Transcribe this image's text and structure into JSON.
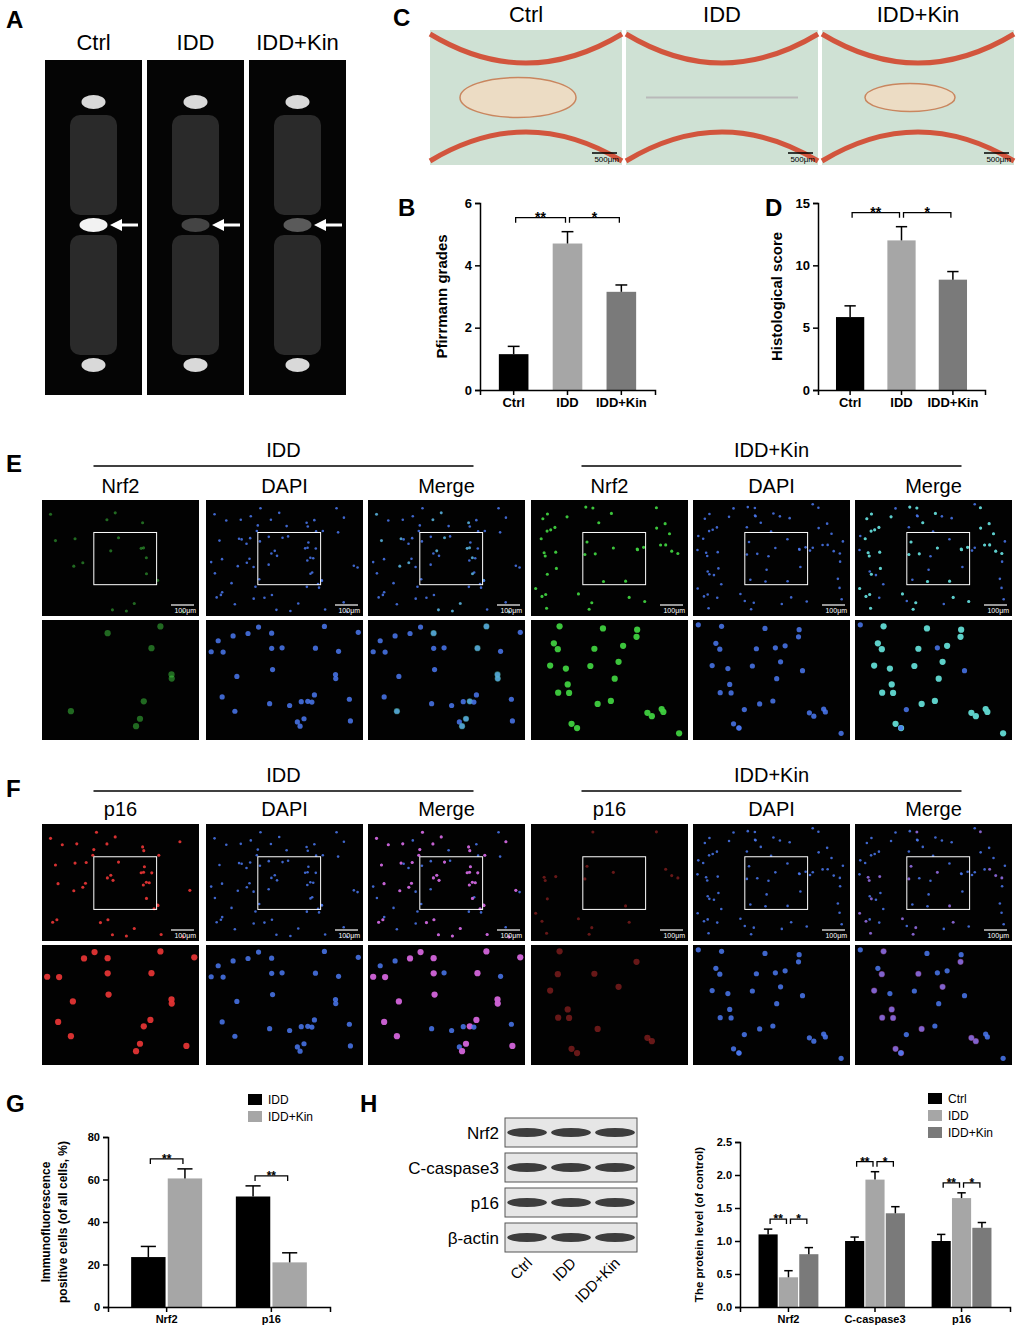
{
  "chart_data": [
    {
      "type": "bar",
      "title": "B",
      "y_label": "Pfirrmann grades",
      "categories": [
        "Ctrl",
        "IDD",
        "IDD+Kin"
      ],
      "values": [
        1.15,
        4.7,
        3.15
      ],
      "errors": [
        0.25,
        0.38,
        0.22
      ],
      "colors": [
        "#000000",
        "#a6a6a6",
        "#7a7a7a"
      ],
      "ylim": [
        0,
        6
      ],
      "yticks": [
        0,
        2,
        4,
        6
      ],
      "annotations": [
        {
          "between": [
            "Ctrl",
            "IDD"
          ],
          "text": "**"
        },
        {
          "between": [
            "IDD",
            "IDD+Kin"
          ],
          "text": "*"
        }
      ]
    },
    {
      "type": "bar",
      "title": "D",
      "y_label": "Histological score",
      "categories": [
        "Ctrl",
        "IDD",
        "IDD+Kin"
      ],
      "values": [
        5.85,
        12.0,
        8.85
      ],
      "errors": [
        0.9,
        1.1,
        0.65
      ],
      "colors": [
        "#000000",
        "#a6a6a6",
        "#7a7a7a"
      ],
      "ylim": [
        0,
        15
      ],
      "yticks": [
        0,
        5,
        10,
        15
      ],
      "annotations": [
        {
          "between": [
            "Ctrl",
            "IDD"
          ],
          "text": "**"
        },
        {
          "between": [
            "IDD",
            "IDD+Kin"
          ],
          "text": "*"
        }
      ]
    },
    {
      "type": "bar",
      "title": "G",
      "y_label": [
        "Immunofluorescence",
        "positive cells (of all cells, %)"
      ],
      "categories": [
        "Nrf2",
        "p16"
      ],
      "series": [
        {
          "name": "IDD",
          "color": "#000000",
          "values": [
            23.5,
            52.0
          ],
          "errors": [
            5.0,
            5.0
          ]
        },
        {
          "name": "IDD+Kin",
          "color": "#a6a6a6",
          "values": [
            60.5,
            21.0
          ],
          "errors": [
            4.5,
            4.5
          ]
        }
      ],
      "ylim": [
        0,
        80
      ],
      "yticks": [
        0,
        20,
        40,
        60,
        80
      ],
      "legend": "upper right",
      "annotations": [
        {
          "category": "Nrf2",
          "between": [
            "IDD",
            "IDD+Kin"
          ],
          "text": "**"
        },
        {
          "category": "p16",
          "between": [
            "IDD",
            "IDD+Kin"
          ],
          "text": "**"
        }
      ]
    },
    {
      "type": "bar",
      "title": "H",
      "y_label": "The protein level (of control)",
      "categories": [
        "Nrf2",
        "C-caspase3",
        "p16"
      ],
      "series": [
        {
          "name": "Ctrl",
          "color": "#000000",
          "values": [
            1.1,
            1.0,
            1.0
          ],
          "errors": [
            0.08,
            0.06,
            0.1
          ]
        },
        {
          "name": "IDD",
          "color": "#a6a6a6",
          "values": [
            0.45,
            1.93,
            1.65
          ],
          "errors": [
            0.1,
            0.12,
            0.08
          ]
        },
        {
          "name": "IDD+Kin",
          "color": "#7a7a7a",
          "values": [
            0.8,
            1.42,
            1.2
          ],
          "errors": [
            0.1,
            0.1,
            0.08
          ]
        }
      ],
      "ylim": [
        0,
        2.5
      ],
      "yticks": [
        {
          "value": 0,
          "label": "0.0"
        },
        0.5,
        {
          "value": 1,
          "label": "1.0"
        },
        1.5,
        {
          "value": 2,
          "label": "2.0"
        },
        2.5
      ],
      "legend": "upper right",
      "annotations": [
        {
          "category": "Nrf2",
          "between": [
            "Ctrl",
            "IDD"
          ],
          "text": "**"
        },
        {
          "category": "Nrf2",
          "between": [
            "IDD",
            "IDD+Kin"
          ],
          "text": "*"
        },
        {
          "category": "C-caspase3",
          "between": [
            "Ctrl",
            "IDD"
          ],
          "text": "**"
        },
        {
          "category": "C-caspase3",
          "between": [
            "IDD",
            "IDD+Kin"
          ],
          "text": "*"
        },
        {
          "category": "p16",
          "between": [
            "Ctrl",
            "IDD"
          ],
          "text": "**"
        },
        {
          "category": "p16",
          "between": [
            "IDD",
            "IDD+Kin"
          ],
          "text": "*"
        }
      ]
    }
  ],
  "image_panels": {
    "A": {
      "label": "A",
      "columns": [
        "Ctrl",
        "IDD",
        "IDD+Kin"
      ]
    },
    "C": {
      "label": "C",
      "columns": [
        "Ctrl",
        "IDD",
        "IDD+Kin"
      ],
      "scale_bar": "500μm"
    },
    "E": {
      "label": "E",
      "groups": [
        "IDD",
        "IDD+Kin"
      ],
      "channels": [
        "Nrf2",
        "DAPI",
        "Merge"
      ],
      "scale_bar": "100μm"
    },
    "F": {
      "label": "F",
      "groups": [
        "IDD",
        "IDD+Kin"
      ],
      "channels": [
        "p16",
        "DAPI",
        "Merge"
      ],
      "scale_bar": "100μm"
    },
    "blot": {
      "rows": [
        "Nrf2",
        "C-caspase3",
        "p16",
        "β-actin"
      ],
      "lanes": [
        "Ctrl",
        "IDD",
        "IDD+Kin"
      ]
    }
  }
}
